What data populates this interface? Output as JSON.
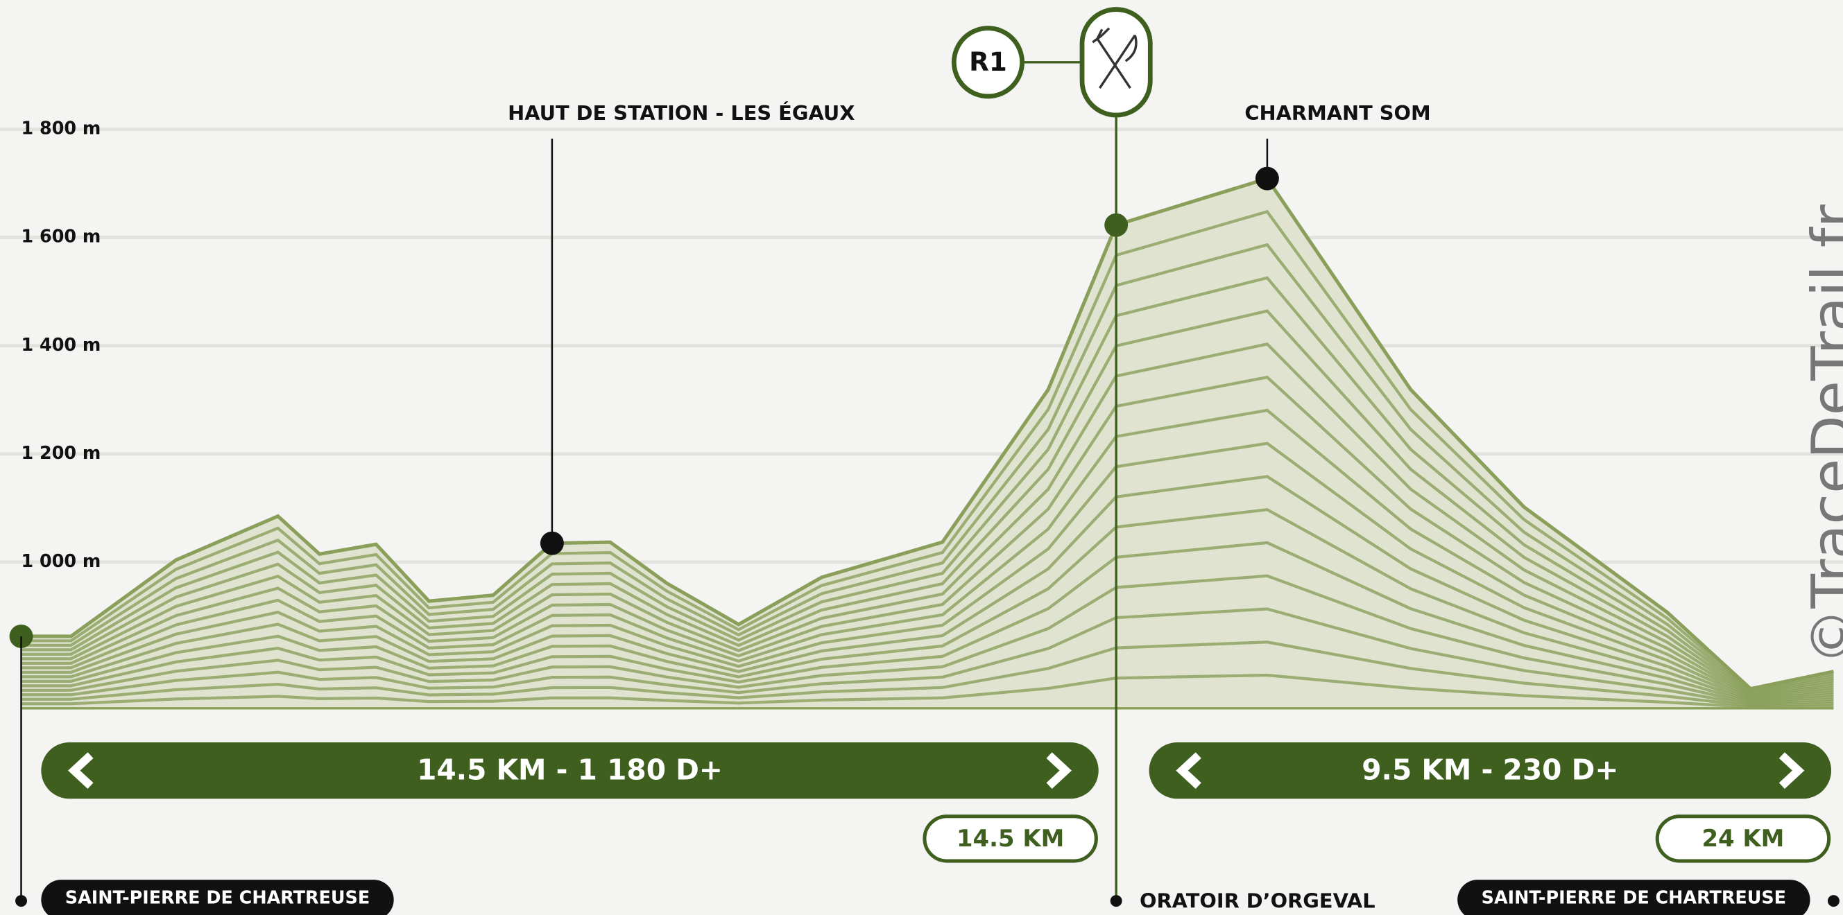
{
  "chart_data": {
    "type": "area",
    "x": [
      0,
      0.66,
      2.05,
      3.4,
      3.95,
      4.7,
      5.4,
      6.25,
      7.03,
      7.8,
      8.55,
      9.5,
      10.6,
      12.2,
      13.6,
      14.5,
      16.5,
      18.4,
      19.9,
      21.8,
      22.9,
      24
    ],
    "values": [
      863,
      863,
      1004,
      1085,
      1015,
      1033,
      928,
      939,
      1035,
      1037,
      961,
      885,
      972,
      1037,
      1319,
      1623,
      1709,
      1319,
      1102,
      907,
      766,
      798
    ],
    "color": "#8a9f5a",
    "xlim": [
      0,
      24
    ],
    "ylim": [
      730,
      1900
    ],
    "yticks": [
      {
        "value": 1000,
        "label": "1 000 m"
      },
      {
        "value": 1200,
        "label": "1 200 m"
      },
      {
        "value": 1400,
        "label": "1 400 m"
      },
      {
        "value": 1600,
        "label": "1 600 m"
      },
      {
        "value": 1800,
        "label": "1 800 m"
      }
    ],
    "grid": true,
    "annotations": [
      {
        "text": "HAUT DE STATION - LES ÉGAUX",
        "x": 7.03,
        "y": 1035
      },
      {
        "text": "CHARMANT SOM",
        "x": 16.5,
        "y": 1709
      }
    ],
    "refreshment": {
      "label": "R1",
      "x": 14.5
    },
    "segments": [
      "14.5 KM - 1 180 D+",
      "9.5 KM - 230 D+"
    ],
    "km_markers": [
      {
        "value": 14.5,
        "label": "14.5 KM"
      },
      {
        "value": 24,
        "label": "24 KM"
      }
    ],
    "places": [
      {
        "name": "SAINT-PIERRE DE CHARTREUSE",
        "x": 0
      },
      {
        "name": "ORATOIR D’ORGEVAL",
        "x": 14.5
      },
      {
        "name": "SAINT-PIERRE DE CHARTREUSE",
        "x": 24
      }
    ],
    "watermark": "©TraceDeTrail.fr"
  }
}
